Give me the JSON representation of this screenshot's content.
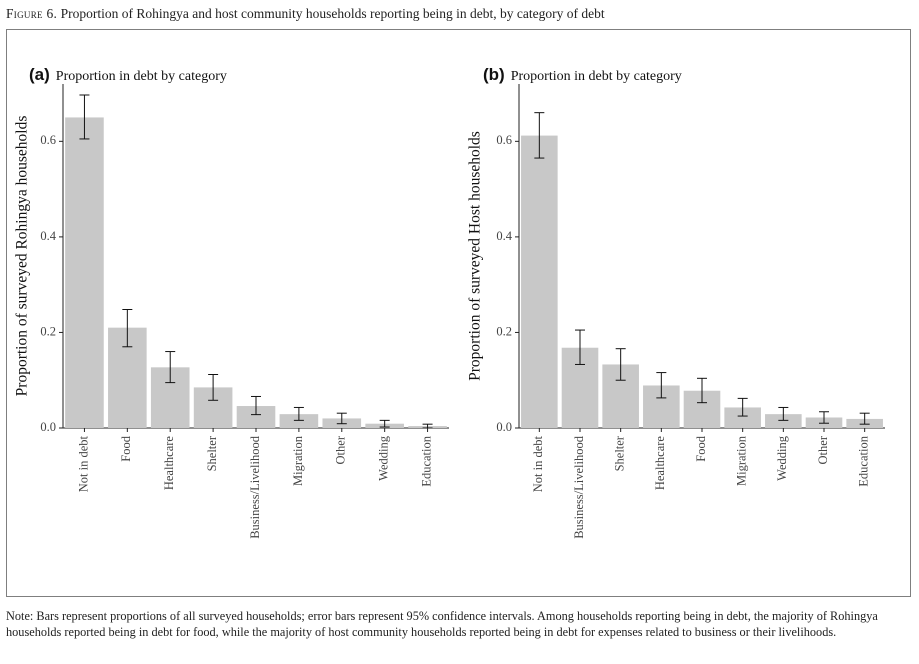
{
  "figure": {
    "label": "Figure 6.",
    "title": "Proportion of Rohingya and host community households reporting being in debt, by category of debt"
  },
  "note": "Note: Bars represent proportions of all surveyed households; error bars represent 95% confidence intervals. Among households reporting being in debt, the majority of Rohingya households reported being in debt for food, while the majority of host community households reported being in debt for expenses related to business or their livelihoods.",
  "colors": {
    "bar": "#c8c8c8",
    "axis": "#222222",
    "error_bar": "#111111"
  },
  "chart_data": [
    {
      "type": "bar",
      "panel": "(a)",
      "title": "Proportion in debt by category",
      "ylabel": "Proportion of surveyed Rohingya households",
      "xlabel": "",
      "ylim": [
        0,
        0.72
      ],
      "yticks": [
        0.0,
        0.2,
        0.4,
        0.6
      ],
      "ytick_labels": [
        "0.0",
        "0.2",
        "0.4",
        "0.6"
      ],
      "grid": false,
      "categories": [
        "Not in debt",
        "Food",
        "Healthcare",
        "Shelter",
        "Business/Livelihood",
        "Migration",
        "Other",
        "Wedding",
        "Education"
      ],
      "values": [
        0.65,
        0.21,
        0.127,
        0.085,
        0.046,
        0.029,
        0.02,
        0.009,
        0.004
      ],
      "error_low": [
        0.605,
        0.17,
        0.095,
        0.058,
        0.028,
        0.016,
        0.009,
        0.002,
        0.0
      ],
      "error_high": [
        0.697,
        0.248,
        0.16,
        0.112,
        0.066,
        0.043,
        0.031,
        0.016,
        0.008
      ]
    },
    {
      "type": "bar",
      "panel": "(b)",
      "title": "Proportion in debt by category",
      "ylabel": "Proportion of surveyed Host households",
      "xlabel": "",
      "ylim": [
        0,
        0.72
      ],
      "yticks": [
        0.0,
        0.2,
        0.4,
        0.6
      ],
      "ytick_labels": [
        "0.0",
        "0.2",
        "0.4",
        "0.6"
      ],
      "grid": false,
      "categories": [
        "Not in debt",
        "Business/Livelihood",
        "Shelter",
        "Healthcare",
        "Food",
        "Migration",
        "Wedding",
        "Other",
        "Education"
      ],
      "values": [
        0.612,
        0.168,
        0.133,
        0.089,
        0.078,
        0.043,
        0.029,
        0.022,
        0.019
      ],
      "error_low": [
        0.565,
        0.133,
        0.1,
        0.063,
        0.053,
        0.025,
        0.016,
        0.01,
        0.008
      ],
      "error_high": [
        0.66,
        0.205,
        0.166,
        0.116,
        0.104,
        0.062,
        0.043,
        0.034,
        0.031
      ]
    }
  ]
}
